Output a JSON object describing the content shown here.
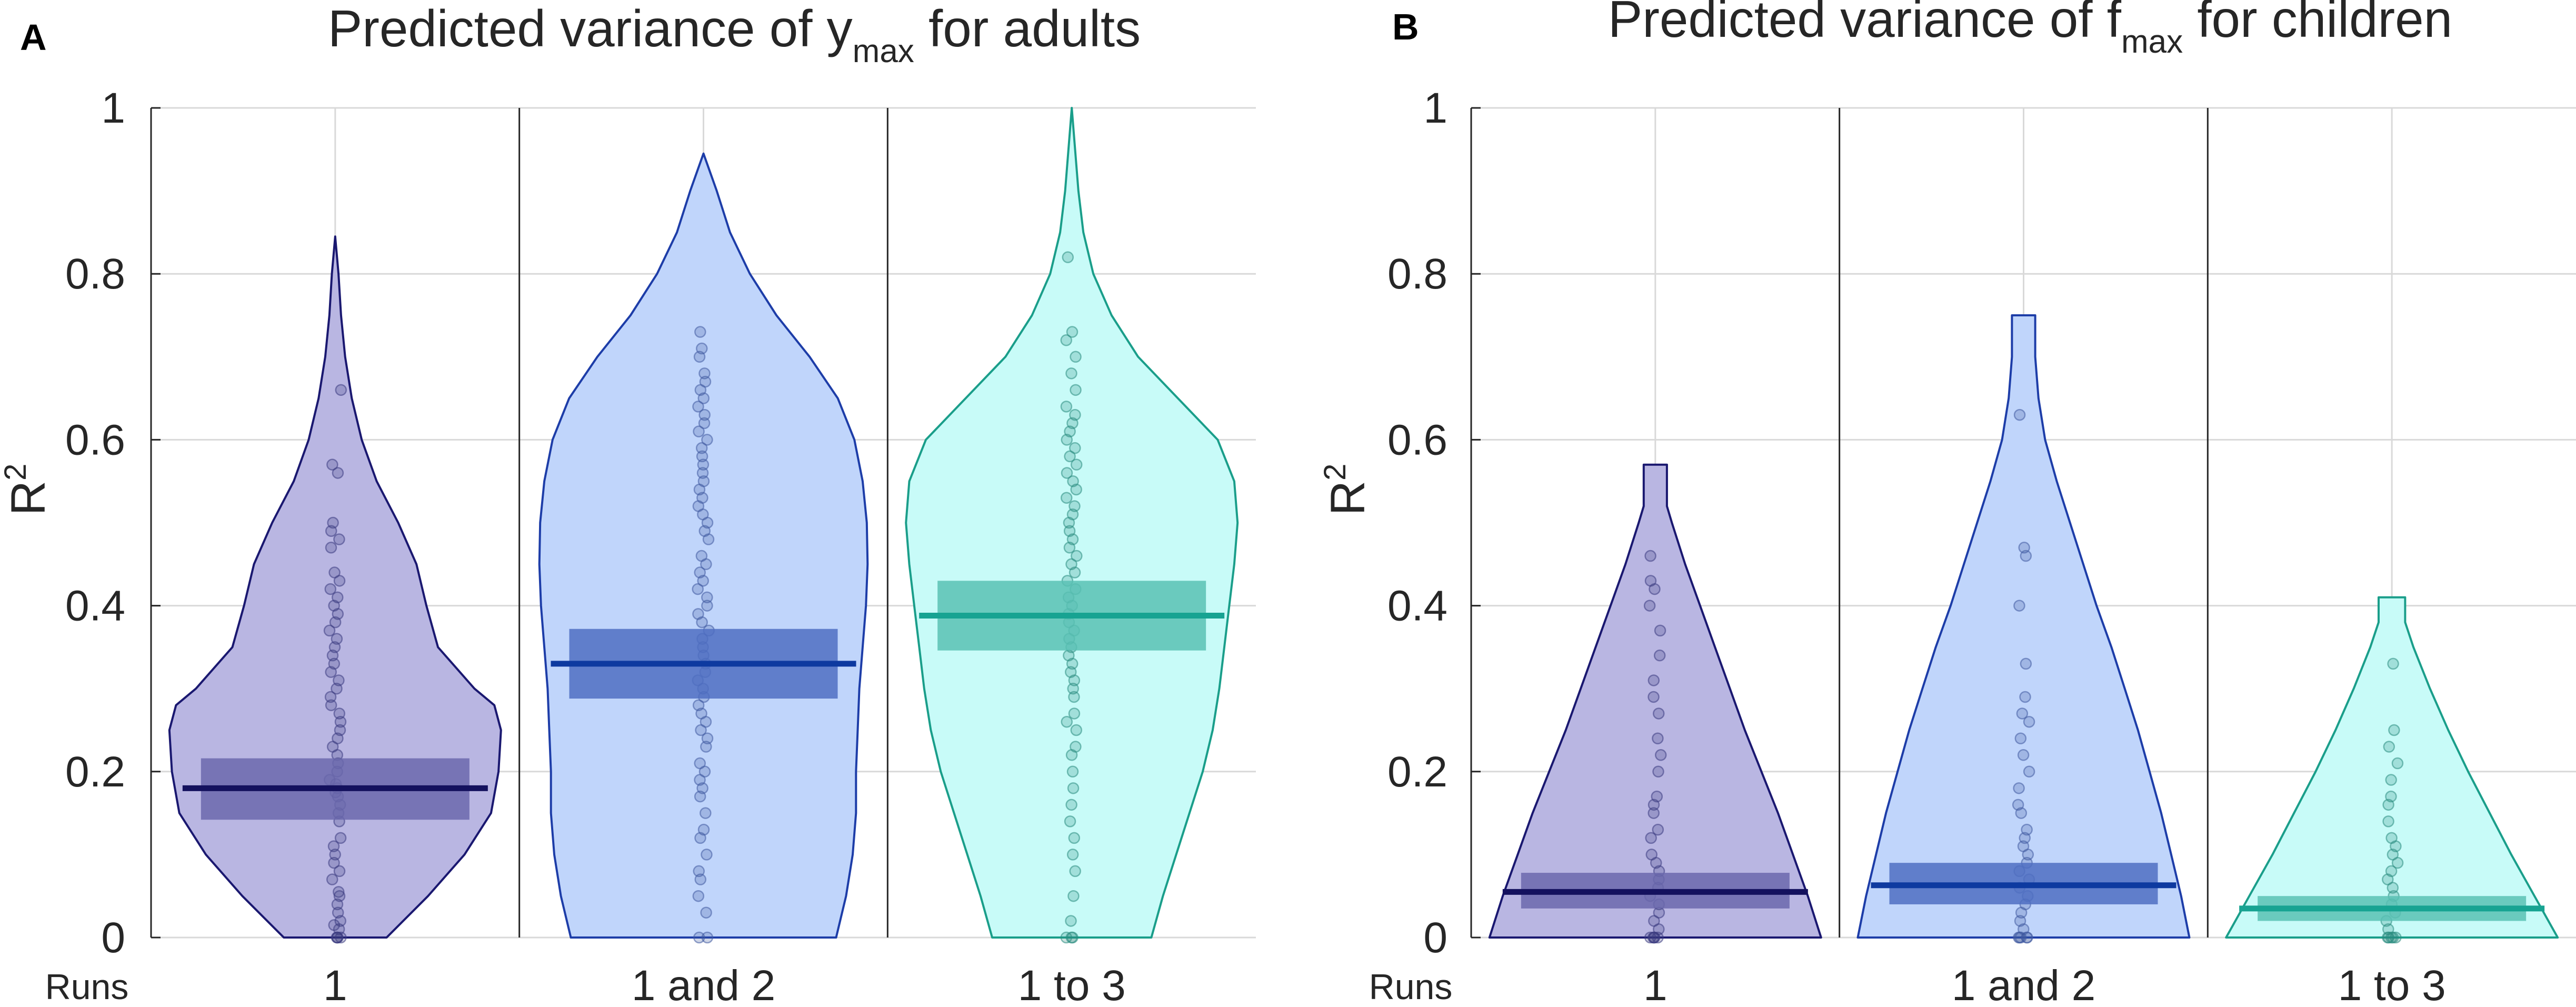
{
  "chart_data": [
    {
      "type": "violin",
      "panel_label": "A",
      "title": {
        "prefix": "Predicted variance of y",
        "subscript": "max",
        "suffix": " for adults"
      },
      "ylabel": {
        "base": "R",
        "sup": "2"
      },
      "xlabel_prefix": "Runs",
      "ylim": [
        0,
        1
      ],
      "yticks": [
        "0",
        "0.2",
        "0.4",
        "0.6",
        "0.8",
        "1"
      ],
      "grid": true,
      "groups": [
        {
          "label": "1",
          "mean": 0.18,
          "ci": [
            0.142,
            0.216
          ],
          "density": [
            [
              0.0,
              0.31
            ],
            [
              0.05,
              0.56
            ],
            [
              0.1,
              0.78
            ],
            [
              0.15,
              0.94
            ],
            [
              0.2,
              0.985
            ],
            [
              0.25,
              1.0
            ],
            [
              0.28,
              0.96
            ],
            [
              0.3,
              0.84
            ],
            [
              0.35,
              0.62
            ],
            [
              0.4,
              0.55
            ],
            [
              0.45,
              0.49
            ],
            [
              0.5,
              0.38
            ],
            [
              0.55,
              0.25
            ],
            [
              0.6,
              0.16
            ],
            [
              0.65,
              0.1
            ],
            [
              0.7,
              0.06
            ],
            [
              0.75,
              0.035
            ],
            [
              0.8,
              0.02
            ],
            [
              0.845,
              0.0
            ]
          ],
          "points": [
            0.0,
            0.0,
            0.0,
            0.0,
            0.01,
            0.015,
            0.02,
            0.03,
            0.04,
            0.05,
            0.055,
            0.07,
            0.08,
            0.09,
            0.1,
            0.11,
            0.12,
            0.14,
            0.15,
            0.16,
            0.17,
            0.175,
            0.18,
            0.185,
            0.19,
            0.2,
            0.21,
            0.22,
            0.23,
            0.24,
            0.25,
            0.26,
            0.27,
            0.28,
            0.29,
            0.3,
            0.31,
            0.32,
            0.33,
            0.34,
            0.35,
            0.36,
            0.37,
            0.38,
            0.39,
            0.4,
            0.41,
            0.42,
            0.43,
            0.44,
            0.47,
            0.48,
            0.49,
            0.5,
            0.56,
            0.57,
            0.66
          ]
        },
        {
          "label": "1 and 2",
          "mean": 0.33,
          "ci": [
            0.288,
            0.372
          ],
          "density": [
            [
              0.0,
              0.8
            ],
            [
              0.05,
              0.86
            ],
            [
              0.1,
              0.9
            ],
            [
              0.15,
              0.92
            ],
            [
              0.2,
              0.92
            ],
            [
              0.25,
              0.93
            ],
            [
              0.3,
              0.94
            ],
            [
              0.35,
              0.96
            ],
            [
              0.4,
              0.98
            ],
            [
              0.45,
              0.99
            ],
            [
              0.5,
              0.985
            ],
            [
              0.55,
              0.96
            ],
            [
              0.6,
              0.91
            ],
            [
              0.65,
              0.81
            ],
            [
              0.7,
              0.64
            ],
            [
              0.75,
              0.44
            ],
            [
              0.8,
              0.28
            ],
            [
              0.85,
              0.16
            ],
            [
              0.9,
              0.08
            ],
            [
              0.945,
              0.0
            ]
          ],
          "points": [
            0.0,
            0.0,
            0.03,
            0.05,
            0.07,
            0.08,
            0.1,
            0.12,
            0.13,
            0.15,
            0.17,
            0.18,
            0.19,
            0.2,
            0.21,
            0.23,
            0.24,
            0.25,
            0.26,
            0.27,
            0.28,
            0.29,
            0.3,
            0.31,
            0.32,
            0.33,
            0.34,
            0.35,
            0.36,
            0.37,
            0.38,
            0.39,
            0.4,
            0.41,
            0.42,
            0.43,
            0.44,
            0.45,
            0.46,
            0.48,
            0.49,
            0.5,
            0.51,
            0.52,
            0.53,
            0.54,
            0.55,
            0.56,
            0.57,
            0.58,
            0.59,
            0.6,
            0.61,
            0.62,
            0.63,
            0.64,
            0.65,
            0.66,
            0.67,
            0.68,
            0.7,
            0.71,
            0.73
          ]
        },
        {
          "label": "1 to 3",
          "mean": 0.388,
          "ci": [
            0.346,
            0.43
          ],
          "density": [
            [
              0.0,
              0.48
            ],
            [
              0.05,
              0.55
            ],
            [
              0.1,
              0.63
            ],
            [
              0.15,
              0.71
            ],
            [
              0.2,
              0.79
            ],
            [
              0.25,
              0.85
            ],
            [
              0.3,
              0.89
            ],
            [
              0.35,
              0.92
            ],
            [
              0.4,
              0.95
            ],
            [
              0.45,
              0.98
            ],
            [
              0.5,
              1.0
            ],
            [
              0.55,
              0.98
            ],
            [
              0.6,
              0.88
            ],
            [
              0.65,
              0.64
            ],
            [
              0.7,
              0.4
            ],
            [
              0.75,
              0.24
            ],
            [
              0.8,
              0.13
            ],
            [
              0.85,
              0.07
            ],
            [
              0.9,
              0.04
            ],
            [
              0.95,
              0.02
            ],
            [
              1.0,
              0.0
            ]
          ],
          "points": [
            0.0,
            0.0,
            0.0,
            0.02,
            0.05,
            0.08,
            0.1,
            0.12,
            0.14,
            0.16,
            0.18,
            0.2,
            0.22,
            0.23,
            0.25,
            0.26,
            0.27,
            0.29,
            0.3,
            0.31,
            0.32,
            0.33,
            0.34,
            0.35,
            0.36,
            0.37,
            0.38,
            0.39,
            0.4,
            0.41,
            0.42,
            0.43,
            0.44,
            0.45,
            0.46,
            0.47,
            0.48,
            0.49,
            0.5,
            0.51,
            0.52,
            0.53,
            0.54,
            0.55,
            0.56,
            0.57,
            0.58,
            0.59,
            0.6,
            0.61,
            0.62,
            0.63,
            0.64,
            0.66,
            0.68,
            0.7,
            0.72,
            0.73,
            0.82
          ]
        }
      ]
    },
    {
      "type": "violin",
      "panel_label": "B",
      "title": {
        "prefix": "Predicted variance of f",
        "subscript": "max",
        "suffix": " for children"
      },
      "ylabel": {
        "base": "R",
        "sup": "2"
      },
      "xlabel_prefix": "Runs",
      "ylim": [
        0,
        1
      ],
      "yticks": [
        "0",
        "0.2",
        "0.4",
        "0.6",
        "0.8",
        "1"
      ],
      "grid": true,
      "groups": [
        {
          "label": "1",
          "mean": 0.055,
          "ci": [
            0.035,
            0.078
          ],
          "density": [
            [
              0.0,
              1.0
            ],
            [
              0.05,
              0.92
            ],
            [
              0.1,
              0.83
            ],
            [
              0.15,
              0.74
            ],
            [
              0.2,
              0.64
            ],
            [
              0.25,
              0.54
            ],
            [
              0.3,
              0.45
            ],
            [
              0.35,
              0.36
            ],
            [
              0.4,
              0.27
            ],
            [
              0.45,
              0.18
            ],
            [
              0.5,
              0.1
            ],
            [
              0.52,
              0.07
            ],
            [
              0.55,
              0.07
            ],
            [
              0.57,
              0.07
            ]
          ],
          "top_flat": true,
          "points": [
            0.0,
            0.0,
            0.0,
            0.0,
            0.0,
            0.01,
            0.02,
            0.03,
            0.04,
            0.05,
            0.06,
            0.07,
            0.08,
            0.09,
            0.1,
            0.12,
            0.13,
            0.15,
            0.16,
            0.17,
            0.2,
            0.22,
            0.24,
            0.27,
            0.29,
            0.31,
            0.34,
            0.37,
            0.4,
            0.42,
            0.43,
            0.46
          ]
        },
        {
          "label": "1 and 2",
          "mean": 0.063,
          "ci": [
            0.04,
            0.09
          ],
          "density": [
            [
              0.0,
              1.0
            ],
            [
              0.05,
              0.95
            ],
            [
              0.1,
              0.89
            ],
            [
              0.15,
              0.83
            ],
            [
              0.2,
              0.76
            ],
            [
              0.25,
              0.69
            ],
            [
              0.3,
              0.61
            ],
            [
              0.35,
              0.53
            ],
            [
              0.4,
              0.44
            ],
            [
              0.45,
              0.36
            ],
            [
              0.5,
              0.28
            ],
            [
              0.55,
              0.2
            ],
            [
              0.6,
              0.13
            ],
            [
              0.65,
              0.09
            ],
            [
              0.7,
              0.07
            ],
            [
              0.75,
              0.07
            ]
          ],
          "top_flat": true,
          "points": [
            0.0,
            0.0,
            0.0,
            0.0,
            0.0,
            0.01,
            0.02,
            0.03,
            0.04,
            0.05,
            0.06,
            0.07,
            0.08,
            0.09,
            0.1,
            0.11,
            0.12,
            0.13,
            0.15,
            0.16,
            0.18,
            0.2,
            0.22,
            0.24,
            0.26,
            0.27,
            0.29,
            0.33,
            0.4,
            0.46,
            0.47,
            0.63
          ]
        },
        {
          "label": "1 to 3",
          "mean": 0.035,
          "ci": [
            0.02,
            0.05
          ],
          "density": [
            [
              0.0,
              1.0
            ],
            [
              0.05,
              0.86
            ],
            [
              0.1,
              0.72
            ],
            [
              0.15,
              0.59
            ],
            [
              0.2,
              0.46
            ],
            [
              0.25,
              0.34
            ],
            [
              0.3,
              0.23
            ],
            [
              0.35,
              0.13
            ],
            [
              0.38,
              0.08
            ],
            [
              0.4,
              0.08
            ],
            [
              0.41,
              0.08
            ]
          ],
          "top_flat": true,
          "points": [
            0.0,
            0.0,
            0.0,
            0.0,
            0.0,
            0.01,
            0.02,
            0.03,
            0.04,
            0.05,
            0.06,
            0.07,
            0.08,
            0.09,
            0.1,
            0.11,
            0.12,
            0.14,
            0.16,
            0.17,
            0.19,
            0.21,
            0.23,
            0.25,
            0.33
          ]
        }
      ]
    }
  ],
  "colors": {
    "groups": [
      {
        "fill": "#b9b6e2",
        "edge": "#1a1870",
        "band": "#6b69ad",
        "mean": "#14115e",
        "dot": "#3a3a80"
      },
      {
        "fill": "#c0d5fb",
        "edge": "#1d3da8",
        "band": "#4f6fc2",
        "mean": "#0e3aa0",
        "dot": "#3f5aa0"
      },
      {
        "fill": "#c8fbf8",
        "edge": "#1a9e8a",
        "band": "#59c1b4",
        "mean": "#17a392",
        "dot": "#2a8c80"
      }
    ],
    "axis": "#262626",
    "grid": "#d9d9d9",
    "text": "#262626"
  }
}
